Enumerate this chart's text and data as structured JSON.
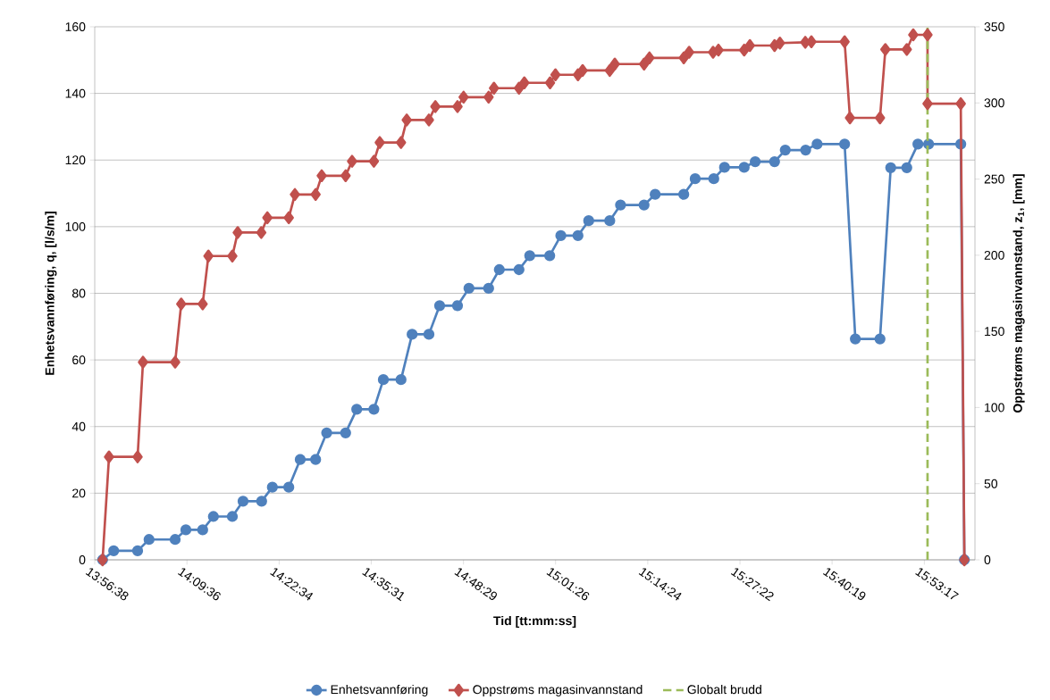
{
  "chart_data": {
    "type": "line",
    "xlabel": "Tid [tt:mm:ss]",
    "ylabel": "Enhetsvannføring, q, [l/s/m]",
    "y2label": "Oppstrøms magasinvannstand, z$_{1}$, [mm]",
    "xlim": [
      13.9439,
      16.0067
    ],
    "xticks": [
      {
        "value": 13.9439,
        "label": "13:56:38"
      },
      {
        "value": 14.16,
        "label": "14:09:36"
      },
      {
        "value": 14.3761,
        "label": "14:22:34"
      },
      {
        "value": 14.5919,
        "label": "14:35:31"
      },
      {
        "value": 14.8081,
        "label": "14:48:29"
      },
      {
        "value": 15.0239,
        "label": "15:01:26"
      },
      {
        "value": 15.24,
        "label": "15:14:24"
      },
      {
        "value": 15.4561,
        "label": "15:27:22"
      },
      {
        "value": 15.6719,
        "label": "15:40:19"
      },
      {
        "value": 15.8881,
        "label": "15:53:17"
      }
    ],
    "ylim": [
      0,
      160
    ],
    "yticks": [
      0,
      20,
      40,
      60,
      80,
      100,
      120,
      140,
      160
    ],
    "y2lim": [
      0,
      350
    ],
    "y2ticks": [
      0,
      50,
      100,
      150,
      200,
      250,
      300,
      350
    ],
    "grid": "y",
    "legend": "bottom",
    "line_style": "solid",
    "series": [
      {
        "name": "Enhetsvannføring",
        "color": "#4f81bd",
        "marker": "circle",
        "x": [
          13.9623,
          13.9883,
          14.0444,
          14.0712,
          14.1324,
          14.1575,
          14.1969,
          14.222,
          14.2664,
          14.2915,
          14.3351,
          14.3602,
          14.3987,
          14.4255,
          14.4616,
          14.4875,
          14.5319,
          14.5579,
          14.5981,
          14.6203,
          14.6617,
          14.6877,
          14.7271,
          14.7522,
          14.7941,
          14.8209,
          14.867,
          14.8921,
          14.9382,
          14.9633,
          15.0102,
          15.0362,
          15.0764,
          15.1015,
          15.1509,
          15.1761,
          15.2313,
          15.2573,
          15.3243,
          15.3511,
          15.3947,
          15.4198,
          15.4659,
          15.4918,
          15.5371,
          15.5622,
          15.61,
          15.6368,
          15.7013,
          15.7264,
          15.7842,
          15.8093,
          15.847,
          15.873,
          15.8981,
          15.9735,
          15.9819
        ],
        "values": [
          0,
          2.7,
          2.7,
          6.1,
          6.1,
          9.0,
          9.0,
          13.0,
          13.0,
          17.6,
          17.6,
          21.8,
          21.8,
          30.1,
          30.1,
          38.1,
          38.1,
          45.2,
          45.2,
          54.1,
          54.1,
          67.7,
          67.7,
          76.3,
          76.3,
          81.5,
          81.5,
          87.1,
          87.1,
          91.3,
          91.3,
          97.3,
          97.3,
          101.8,
          101.8,
          106.5,
          106.5,
          109.7,
          109.7,
          114.4,
          114.4,
          117.8,
          117.8,
          119.5,
          119.5,
          123.0,
          123.0,
          124.8,
          124.8,
          66.3,
          66.3,
          117.7,
          117.7,
          124.8,
          124.8,
          124.8,
          0
        ]
      },
      {
        "name": "Oppstrøms magasinvannstand",
        "color": "#c0504d",
        "marker": "diamond",
        "axis": "y2",
        "x": [
          13.9623,
          13.9774,
          14.0444,
          14.057,
          14.1324,
          14.1466,
          14.1969,
          14.2103,
          14.2664,
          14.279,
          14.3342,
          14.3485,
          14.3987,
          14.413,
          14.4616,
          14.4758,
          14.5319,
          14.547,
          14.5981,
          14.6119,
          14.6617,
          14.6751,
          14.7271,
          14.7422,
          14.7941,
          14.8083,
          14.867,
          14.8795,
          14.9382,
          14.9507,
          15.011,
          15.0236,
          15.0764,
          15.0873,
          15.1509,
          15.1627,
          15.2313,
          15.2439,
          15.3243,
          15.3369,
          15.393,
          15.4056,
          15.4659,
          15.4793,
          15.5371,
          15.5496,
          15.6091,
          15.6234,
          15.7013,
          15.7138,
          15.7842,
          15.7968,
          15.847,
          15.8621,
          15.8956,
          15.8956,
          15.9735,
          15.9819
        ],
        "values": [
          0,
          67.6,
          67.6,
          129.8,
          129.8,
          168,
          168,
          199.5,
          199.5,
          214.9,
          214.9,
          224.6,
          224.6,
          239.9,
          239.9,
          252.2,
          252.2,
          261.7,
          261.7,
          274,
          274,
          288.8,
          288.8,
          297.6,
          297.6,
          303.8,
          303.8,
          309.7,
          309.7,
          313.2,
          313.2,
          318.5,
          318.5,
          321.3,
          321.3,
          325.5,
          325.5,
          329.6,
          329.6,
          333.3,
          333.3,
          334.7,
          334.7,
          337.7,
          337.7,
          339.3,
          339.8,
          340.2,
          340.2,
          290.2,
          290.2,
          335.1,
          335.1,
          344.7,
          344.7,
          299.5,
          299.5,
          0
        ]
      }
    ],
    "ref_lines": [
      {
        "axis": "x",
        "value": 15.8956,
        "label": "Globalt brudd",
        "color": "#9bbb59",
        "line_style": "dashed"
      }
    ]
  }
}
